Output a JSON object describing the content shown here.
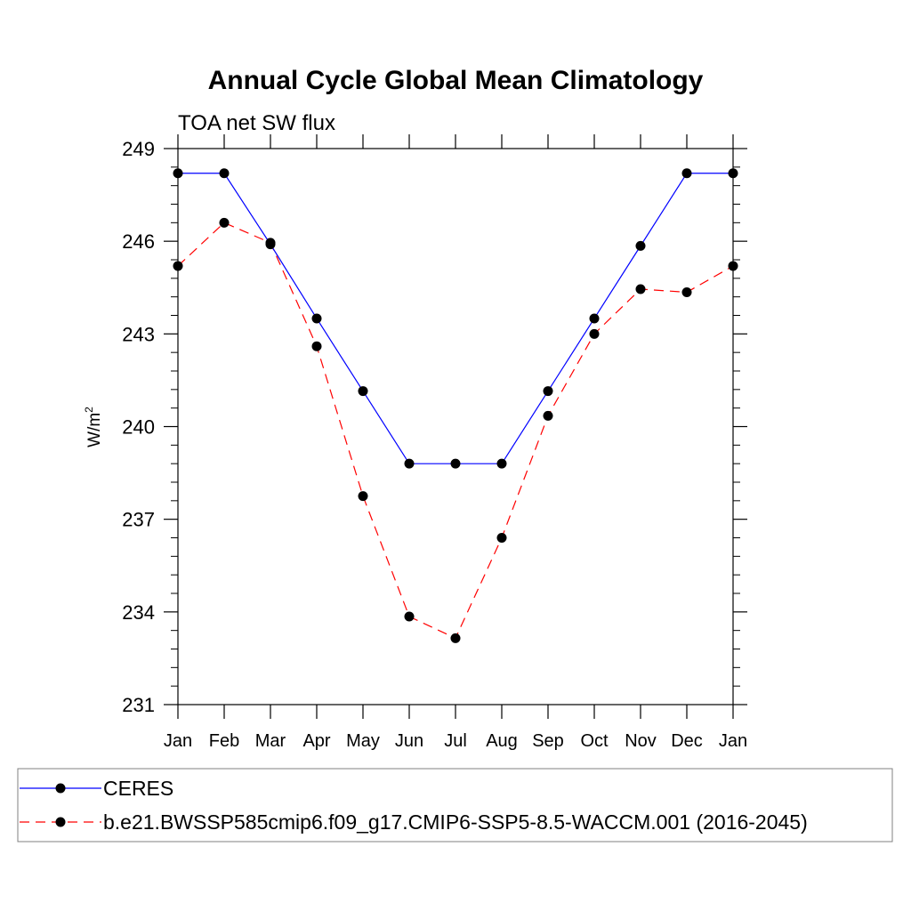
{
  "chart_data": {
    "type": "line",
    "title": "Annual Cycle Global Mean Climatology",
    "subtitle": "TOA net SW flux",
    "ylabel_base": "W/m",
    "ylabel_sup": "2",
    "xlabel": "",
    "ylim": [
      231,
      249
    ],
    "yticks": [
      231,
      234,
      237,
      240,
      243,
      246,
      249
    ],
    "categories": [
      "Jan",
      "Feb",
      "Mar",
      "Apr",
      "May",
      "Jun",
      "Jul",
      "Aug",
      "Sep",
      "Oct",
      "Nov",
      "Dec",
      "Jan"
    ],
    "series": [
      {
        "name": "CERES",
        "color": "#0000ff",
        "dash": "solid",
        "values": [
          248.2,
          248.2,
          245.9,
          243.5,
          241.15,
          238.8,
          238.8,
          238.8,
          241.15,
          243.5,
          245.85,
          248.2,
          248.2
        ]
      },
      {
        "name": "b.e21.BWSSP585cmip6.f09_g17.CMIP6-SSP5-8.5-WACCM.001 (2016-2045)",
        "color": "#ff0000",
        "dash": "dashed",
        "values": [
          245.2,
          246.6,
          245.95,
          242.6,
          237.75,
          233.85,
          233.15,
          236.4,
          240.35,
          243.0,
          244.45,
          244.35,
          245.2
        ]
      }
    ],
    "legend": "bottom"
  }
}
